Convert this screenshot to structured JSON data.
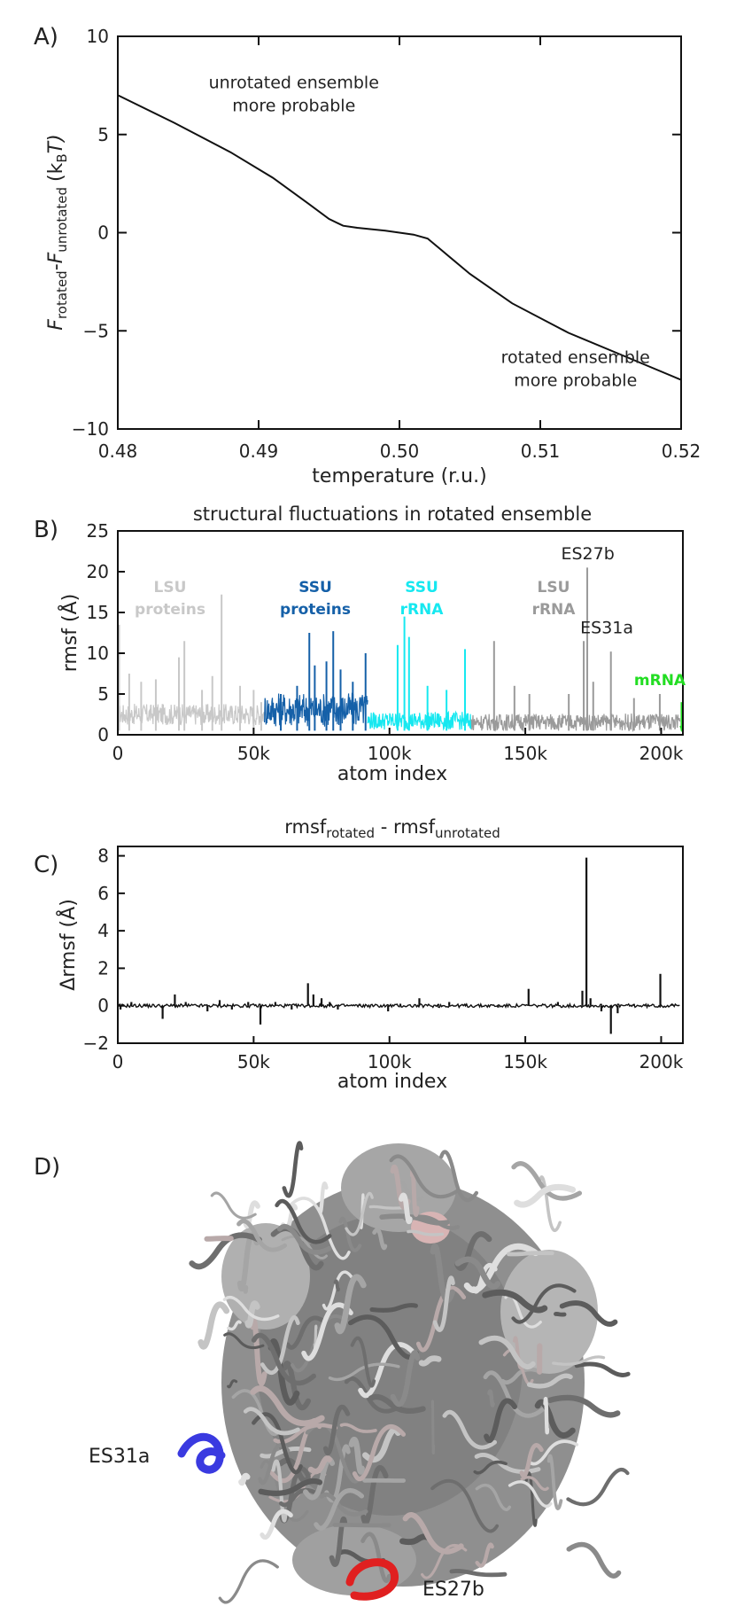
{
  "panel_labels": {
    "A": "A)",
    "B": "B)",
    "C": "C)",
    "D": "D)"
  },
  "colors": {
    "lsu_proteins": "#c8c8c8",
    "ssu_proteins": "#1560a8",
    "ssu_rrna": "#16e8f0",
    "lsu_rrna": "#9a9a9a",
    "mrna": "#22dd22",
    "es31a": "#3a3ae0",
    "es27b": "#e02020"
  },
  "chart_data": [
    {
      "id": "A",
      "type": "line",
      "title": "",
      "xlabel": "temperature (r.u.)",
      "ylabel_main": "F",
      "ylabel_sub1": "rotated",
      "ylabel_sub2": "unrotated",
      "ylabel_unit": "(k",
      "ylabel_unit_sub": "B",
      "ylabel_unit_end": "T)",
      "xlim": [
        0.48,
        0.52
      ],
      "ylim": [
        -10,
        10
      ],
      "xticks": [
        "0.48",
        "0.49",
        "0.50",
        "0.51",
        "0.52"
      ],
      "yticks": [
        "10",
        "5",
        "0",
        "−5",
        "−10"
      ],
      "x": [
        0.48,
        0.484,
        0.488,
        0.491,
        0.4935,
        0.495,
        0.496,
        0.497,
        0.499,
        0.501,
        0.502,
        0.503,
        0.505,
        0.508,
        0.512,
        0.516,
        0.52
      ],
      "y": [
        7.0,
        5.6,
        4.1,
        2.8,
        1.5,
        0.7,
        0.35,
        0.25,
        0.1,
        -0.1,
        -0.3,
        -0.9,
        -2.1,
        -3.6,
        -5.1,
        -6.3,
        -7.5
      ],
      "annotations": [
        {
          "lines": [
            "unrotated ensemble",
            "more probable"
          ],
          "x": 0.4925,
          "y": 7.0
        },
        {
          "lines": [
            "rotated ensemble",
            "more probable"
          ],
          "x": 0.5125,
          "y": -7.0
        }
      ]
    },
    {
      "id": "B",
      "type": "line",
      "title": "structural fluctuations in rotated ensemble",
      "xlabel": "atom index",
      "ylabel": "rmsf (Å)",
      "xlim": [
        0,
        208000
      ],
      "ylim": [
        0,
        25
      ],
      "xticks": [
        "0",
        "50k",
        "100k",
        "150k",
        "200k"
      ],
      "yticks": [
        "0",
        "5",
        "10",
        "15",
        "20",
        "25"
      ],
      "series": [
        {
          "name": "LSU proteins",
          "label_lines": [
            "LSU",
            "proteins"
          ],
          "color_key": "lsu_proteins",
          "range": [
            0,
            54000
          ],
          "spikes": [
            [
              500,
              13.5
            ],
            [
              4200,
              7.5
            ],
            [
              8600,
              6.5
            ],
            [
              14000,
              6.8
            ],
            [
              22500,
              9.5
            ],
            [
              24500,
              11.5
            ],
            [
              31000,
              5.5
            ],
            [
              34800,
              7.2
            ],
            [
              38200,
              17.2
            ],
            [
              45000,
              6.0
            ],
            [
              50000,
              5.5
            ],
            [
              52800,
              4.0
            ]
          ]
        },
        {
          "name": "SSU proteins",
          "label_lines": [
            "SSU",
            "proteins"
          ],
          "color_key": "ssu_proteins",
          "range": [
            54000,
            92000
          ],
          "spikes": [
            [
              60000,
              5.0
            ],
            [
              66000,
              6.0
            ],
            [
              70500,
              12.5
            ],
            [
              72500,
              8.5
            ],
            [
              76800,
              9.0
            ],
            [
              79300,
              12.7
            ],
            [
              82000,
              8.0
            ],
            [
              86500,
              6.5
            ],
            [
              91200,
              10.0
            ]
          ]
        },
        {
          "name": "SSU rRNA",
          "label_lines": [
            "SSU",
            "rRNA"
          ],
          "color_key": "ssu_rrna",
          "range": [
            92000,
            130000
          ],
          "spikes": [
            [
              103000,
              11.0
            ],
            [
              105500,
              14.5
            ],
            [
              107200,
              12.0
            ],
            [
              114000,
              6.0
            ],
            [
              121000,
              5.5
            ],
            [
              127800,
              10.5
            ]
          ]
        },
        {
          "name": "LSU rRNA",
          "label_lines": [
            "LSU",
            "rRNA"
          ],
          "color_key": "lsu_rrna",
          "range": [
            130000,
            207000
          ],
          "spikes": [
            [
              138500,
              11.5
            ],
            [
              146000,
              6.0
            ],
            [
              151500,
              5.0
            ],
            [
              166000,
              5.0
            ],
            [
              171500,
              11.5
            ],
            [
              172800,
              20.5
            ],
            [
              175000,
              6.5
            ],
            [
              181500,
              10.2
            ],
            [
              190000,
              4.5
            ],
            [
              199500,
              5.0
            ]
          ]
        },
        {
          "name": "mRNA",
          "label_lines": [
            "mRNA"
          ],
          "color_key": "mrna",
          "range": [
            207000,
            208000
          ],
          "spikes": [
            [
              207500,
              4.0
            ]
          ]
        }
      ],
      "annotations": [
        {
          "text": "ES27b",
          "x": 173000,
          "y": 21.5
        },
        {
          "text": "ES31a",
          "x": 180000,
          "y": 12.0
        }
      ]
    },
    {
      "id": "C",
      "type": "line",
      "title_main": "rmsf",
      "title_sub1": "rotated",
      "title_mid": " - rmsf",
      "title_sub2": "unrotated",
      "xlabel": "atom index",
      "ylabel": "Δrmsf (Å)",
      "xlim": [
        0,
        208000
      ],
      "ylim": [
        -2,
        8.5
      ],
      "xticks": [
        "0",
        "50k",
        "100k",
        "150k",
        "200k"
      ],
      "yticks": [
        "8",
        "6",
        "4",
        "2",
        "0",
        "−2"
      ],
      "spikes": [
        [
          1000,
          -0.2
        ],
        [
          5000,
          0.2
        ],
        [
          10000,
          0.1
        ],
        [
          16500,
          -0.7
        ],
        [
          21000,
          0.6
        ],
        [
          25000,
          0.2
        ],
        [
          33000,
          -0.3
        ],
        [
          37500,
          0.3
        ],
        [
          42000,
          -0.2
        ],
        [
          48000,
          0.2
        ],
        [
          52500,
          -1.0
        ],
        [
          58000,
          0.2
        ],
        [
          64000,
          -0.2
        ],
        [
          70000,
          1.2
        ],
        [
          72000,
          0.6
        ],
        [
          75000,
          0.4
        ],
        [
          78000,
          0.2
        ],
        [
          81000,
          -0.2
        ],
        [
          89000,
          0.1
        ],
        [
          99500,
          -0.3
        ],
        [
          104000,
          0.1
        ],
        [
          111000,
          0.4
        ],
        [
          118000,
          0.1
        ],
        [
          122000,
          0.2
        ],
        [
          128000,
          0.1
        ],
        [
          140000,
          -0.1
        ],
        [
          151200,
          0.9
        ],
        [
          162000,
          0.2
        ],
        [
          171000,
          0.8
        ],
        [
          172500,
          7.9
        ],
        [
          174000,
          0.4
        ],
        [
          178000,
          -0.3
        ],
        [
          181500,
          -1.5
        ],
        [
          184000,
          -0.4
        ],
        [
          190000,
          0.1
        ],
        [
          199700,
          1.7
        ],
        [
          204000,
          0.1
        ]
      ]
    }
  ],
  "structure_labels": {
    "es31a": "ES31a",
    "es27b": "ES27b"
  }
}
